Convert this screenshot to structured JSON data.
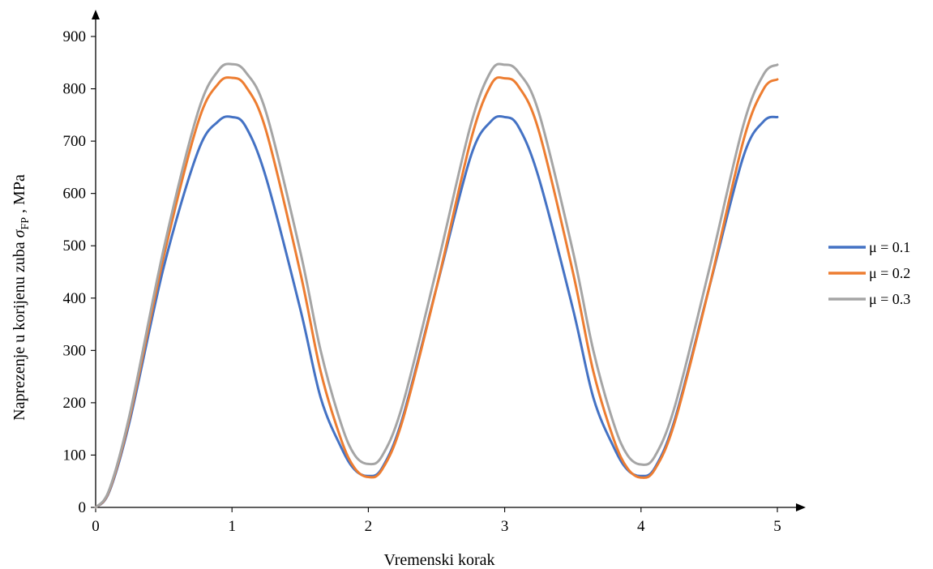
{
  "chart_data": {
    "type": "line",
    "xlabel": "Vremenski korak",
    "ylabel": {
      "prefix": "Naprezenje u korijenu zuba ",
      "symbol": "σ",
      "subscript": "FP",
      "suffix": " , MPa"
    },
    "xlim": [
      0,
      5
    ],
    "ylim": [
      0,
      900
    ],
    "x_ticks": [
      0,
      1,
      2,
      3,
      4,
      5
    ],
    "y_ticks": [
      0,
      100,
      200,
      300,
      400,
      500,
      600,
      700,
      800,
      900
    ],
    "x_tick_labels": [
      "0",
      "1",
      "2",
      "3",
      "4",
      "5"
    ],
    "y_tick_labels": [
      "0",
      "100",
      "200",
      "300",
      "400",
      "500",
      "600",
      "700",
      "800",
      "900"
    ],
    "grid": false,
    "legend_position": "right",
    "series": [
      {
        "name": "μ = 0.1",
        "color": "#4472C4",
        "points": [
          [
            0,
            0
          ],
          [
            0.1,
            30
          ],
          [
            0.25,
            165
          ],
          [
            0.5,
            460
          ],
          [
            0.75,
            680
          ],
          [
            0.9,
            738
          ],
          [
            1.0,
            746
          ],
          [
            1.1,
            728
          ],
          [
            1.25,
            630
          ],
          [
            1.5,
            380
          ],
          [
            1.65,
            210
          ],
          [
            1.8,
            115
          ],
          [
            1.9,
            72
          ],
          [
            2.0,
            60
          ],
          [
            2.1,
            75
          ],
          [
            2.25,
            170
          ],
          [
            2.5,
            420
          ],
          [
            2.75,
            670
          ],
          [
            2.9,
            738
          ],
          [
            3.0,
            746
          ],
          [
            3.1,
            728
          ],
          [
            3.25,
            630
          ],
          [
            3.5,
            380
          ],
          [
            3.65,
            210
          ],
          [
            3.8,
            115
          ],
          [
            3.9,
            72
          ],
          [
            4.0,
            60
          ],
          [
            4.1,
            75
          ],
          [
            4.25,
            170
          ],
          [
            4.5,
            420
          ],
          [
            4.75,
            670
          ],
          [
            4.9,
            738
          ],
          [
            5.0,
            746
          ]
        ]
      },
      {
        "name": "μ = 0.2",
        "color": "#ED7D31",
        "points": [
          [
            0,
            0
          ],
          [
            0.1,
            32
          ],
          [
            0.25,
            172
          ],
          [
            0.5,
            480
          ],
          [
            0.75,
            735
          ],
          [
            0.9,
            810
          ],
          [
            1.0,
            821
          ],
          [
            1.1,
            805
          ],
          [
            1.25,
            720
          ],
          [
            1.5,
            450
          ],
          [
            1.65,
            260
          ],
          [
            1.8,
            130
          ],
          [
            1.9,
            75
          ],
          [
            2.0,
            58
          ],
          [
            2.1,
            72
          ],
          [
            2.25,
            165
          ],
          [
            2.5,
            420
          ],
          [
            2.75,
            700
          ],
          [
            2.9,
            808
          ],
          [
            3.0,
            820
          ],
          [
            3.1,
            805
          ],
          [
            3.25,
            720
          ],
          [
            3.5,
            450
          ],
          [
            3.65,
            260
          ],
          [
            3.8,
            130
          ],
          [
            3.9,
            75
          ],
          [
            4.0,
            57
          ],
          [
            4.1,
            72
          ],
          [
            4.25,
            165
          ],
          [
            4.5,
            420
          ],
          [
            4.75,
            700
          ],
          [
            4.9,
            800
          ],
          [
            5.0,
            818
          ]
        ]
      },
      {
        "name": "μ = 0.3",
        "color": "#A5A5A5",
        "points": [
          [
            0,
            0
          ],
          [
            0.1,
            34
          ],
          [
            0.25,
            178
          ],
          [
            0.5,
            495
          ],
          [
            0.75,
            755
          ],
          [
            0.9,
            835
          ],
          [
            1.0,
            847
          ],
          [
            1.1,
            832
          ],
          [
            1.25,
            755
          ],
          [
            1.5,
            490
          ],
          [
            1.65,
            300
          ],
          [
            1.8,
            160
          ],
          [
            1.9,
            100
          ],
          [
            2.0,
            83
          ],
          [
            2.1,
            98
          ],
          [
            2.25,
            195
          ],
          [
            2.5,
            455
          ],
          [
            2.75,
            730
          ],
          [
            2.9,
            834
          ],
          [
            3.0,
            846
          ],
          [
            3.1,
            832
          ],
          [
            3.25,
            755
          ],
          [
            3.5,
            490
          ],
          [
            3.65,
            300
          ],
          [
            3.8,
            160
          ],
          [
            3.9,
            100
          ],
          [
            4.0,
            82
          ],
          [
            4.1,
            97
          ],
          [
            4.25,
            195
          ],
          [
            4.5,
            455
          ],
          [
            4.75,
            730
          ],
          [
            4.9,
            828
          ],
          [
            5.0,
            846
          ]
        ]
      }
    ]
  }
}
